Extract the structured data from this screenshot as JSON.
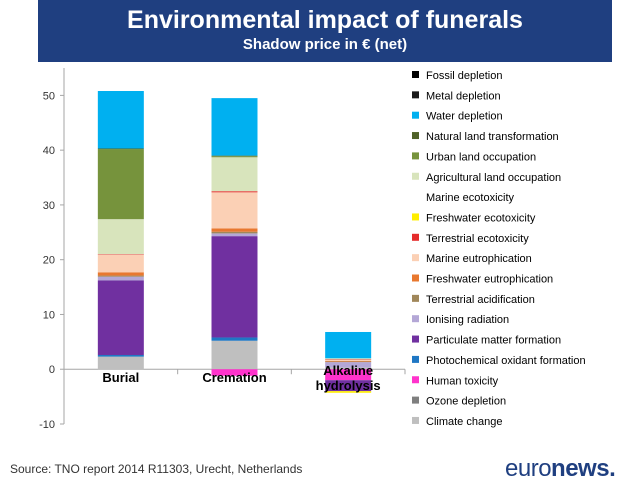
{
  "header": {
    "title": "Environmental impact of funerals",
    "subtitle": "Shadow price in € (net)"
  },
  "source": "Source: TNO report 2014 R11303, Urecht, Netherlands",
  "logo": {
    "part1": "euro",
    "part2": "news",
    "part3": "."
  },
  "chart_data": {
    "type": "bar",
    "stacked": true,
    "categories": [
      "Burial",
      "Cremation",
      "Alkaline hydrolysis"
    ],
    "ylim": [
      -10,
      55
    ],
    "yticks": [
      -10,
      0,
      10,
      20,
      30,
      40,
      50
    ],
    "legend_position": "right",
    "series": [
      {
        "name": "Climate change",
        "color": "#bfbfbf",
        "values": [
          2.3,
          5.2,
          0.3
        ]
      },
      {
        "name": "Ozone depletion",
        "color": "#7f7f7f",
        "values": [
          0,
          0,
          0
        ]
      },
      {
        "name": "Human toxicity",
        "color": "#ff33cc",
        "values": [
          0,
          -1.2,
          -2.0
        ]
      },
      {
        "name": "Photochemical oxidant formation",
        "color": "#1f77c4",
        "values": [
          0.3,
          0.6,
          0
        ]
      },
      {
        "name": "Particulate matter formation",
        "color": "#7030a0",
        "values": [
          13.6,
          18.5,
          -2.0
        ]
      },
      {
        "name": "Ionising radiation",
        "color": "#b4a7d6",
        "values": [
          0.7,
          0.5,
          1.0
        ]
      },
      {
        "name": "Terrestrial acidification",
        "color": "#a0875a",
        "values": [
          0.2,
          0.3,
          0.1
        ]
      },
      {
        "name": "Freshwater eutrophication",
        "color": "#e8782f",
        "values": [
          0.6,
          0.6,
          0.1
        ]
      },
      {
        "name": "Marine eutrophication",
        "color": "#fbd0b5",
        "values": [
          3.2,
          6.6,
          0.2
        ]
      },
      {
        "name": "Terrestrial ecotoxicity",
        "color": "#e52c2c",
        "values": [
          0.1,
          0.2,
          0.1
        ]
      },
      {
        "name": "Freshwater ecotoxicity",
        "color": "#ffee00",
        "values": [
          0,
          0,
          -0.3
        ]
      },
      {
        "name": "Marine ecotoxicity",
        "color": "#ffffff",
        "values": [
          0,
          0,
          0
        ]
      },
      {
        "name": "Agricultural land occupation",
        "color": "#d8e4bc",
        "values": [
          6.4,
          6.2,
          0.2
        ]
      },
      {
        "name": "Urban land occupation",
        "color": "#76933c",
        "values": [
          12.8,
          0.2,
          0
        ]
      },
      {
        "name": "Natural land transformation",
        "color": "#4f6228",
        "values": [
          0.1,
          0.1,
          0
        ]
      },
      {
        "name": "Water depletion",
        "color": "#00b0f0",
        "values": [
          10.5,
          10.5,
          4.8
        ]
      },
      {
        "name": "Metal depletion",
        "color": "#1a1a1a",
        "values": [
          0,
          0,
          0
        ]
      },
      {
        "name": "Fossil depletion",
        "color": "#000000",
        "values": [
          0,
          0,
          0
        ]
      }
    ]
  }
}
